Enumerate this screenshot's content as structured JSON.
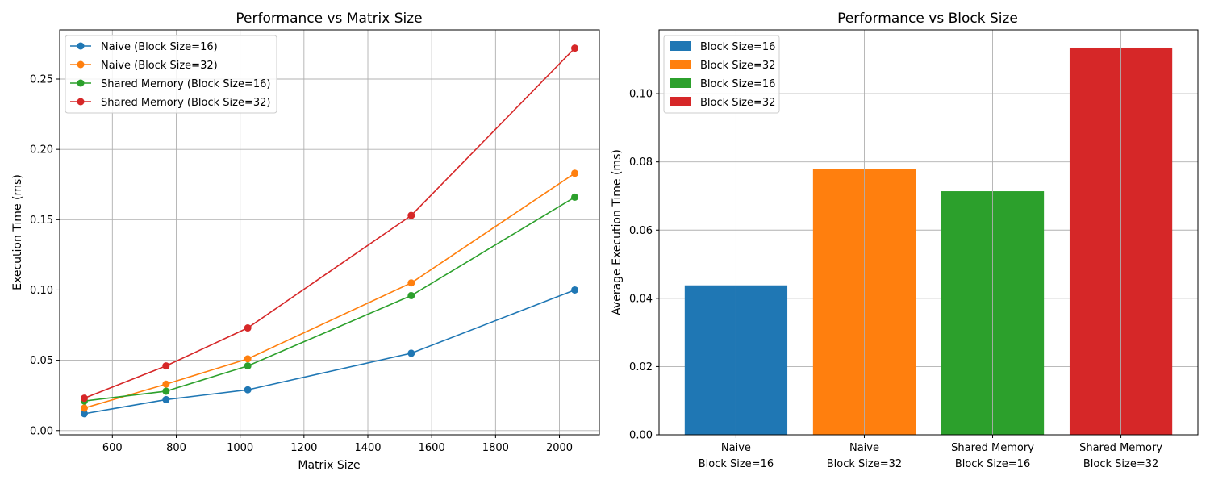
{
  "chart_data": [
    {
      "type": "line",
      "title": "Performance vs Matrix Size",
      "xlabel": "Matrix Size",
      "ylabel": "Execution Time (ms)",
      "xlim": [
        435,
        2125
      ],
      "ylim": [
        -0.003,
        0.285
      ],
      "xticks": [
        600,
        800,
        1000,
        1200,
        1400,
        1600,
        1800,
        2000
      ],
      "yticks": [
        0.0,
        0.05,
        0.1,
        0.15,
        0.2,
        0.25
      ],
      "ytick_labels": [
        "0.00",
        "0.05",
        "0.10",
        "0.15",
        "0.20",
        "0.25"
      ],
      "grid": true,
      "legend": "top-left",
      "x": [
        512,
        768,
        1024,
        1536,
        2048
      ],
      "series": [
        {
          "name": "Naive (Block Size=16)",
          "color": "#1f77b4",
          "values": [
            0.012,
            0.022,
            0.029,
            0.055,
            0.1
          ]
        },
        {
          "name": "Naive (Block Size=32)",
          "color": "#ff7f0e",
          "values": [
            0.016,
            0.033,
            0.051,
            0.105,
            0.183
          ]
        },
        {
          "name": "Shared Memory (Block Size=16)",
          "color": "#2ca02c",
          "values": [
            0.021,
            0.028,
            0.046,
            0.096,
            0.166
          ]
        },
        {
          "name": "Shared Memory (Block Size=32)",
          "color": "#d62728",
          "values": [
            0.023,
            0.046,
            0.073,
            0.153,
            0.272
          ]
        }
      ]
    },
    {
      "type": "bar",
      "title": "Performance vs Block Size",
      "xlabel": "",
      "ylabel": "Average Execution Time (ms)",
      "ylim": [
        0,
        0.1187
      ],
      "yticks": [
        0.0,
        0.02,
        0.04,
        0.06,
        0.08,
        0.1
      ],
      "ytick_labels": [
        "0.00",
        "0.02",
        "0.04",
        "0.06",
        "0.08",
        "0.10"
      ],
      "grid": true,
      "legend": "top-left",
      "categories": [
        [
          "Naive",
          "Block Size=16"
        ],
        [
          "Naive",
          "Block Size=32"
        ],
        [
          "Shared Memory",
          "Block Size=16"
        ],
        [
          "Shared Memory",
          "Block Size=32"
        ]
      ],
      "values": [
        0.0438,
        0.0778,
        0.0714,
        0.1135
      ],
      "colors": [
        "#1f77b4",
        "#ff7f0e",
        "#2ca02c",
        "#d62728"
      ],
      "legend_labels": [
        "Block Size=16",
        "Block Size=32",
        "Block Size=16",
        "Block Size=32"
      ]
    }
  ]
}
